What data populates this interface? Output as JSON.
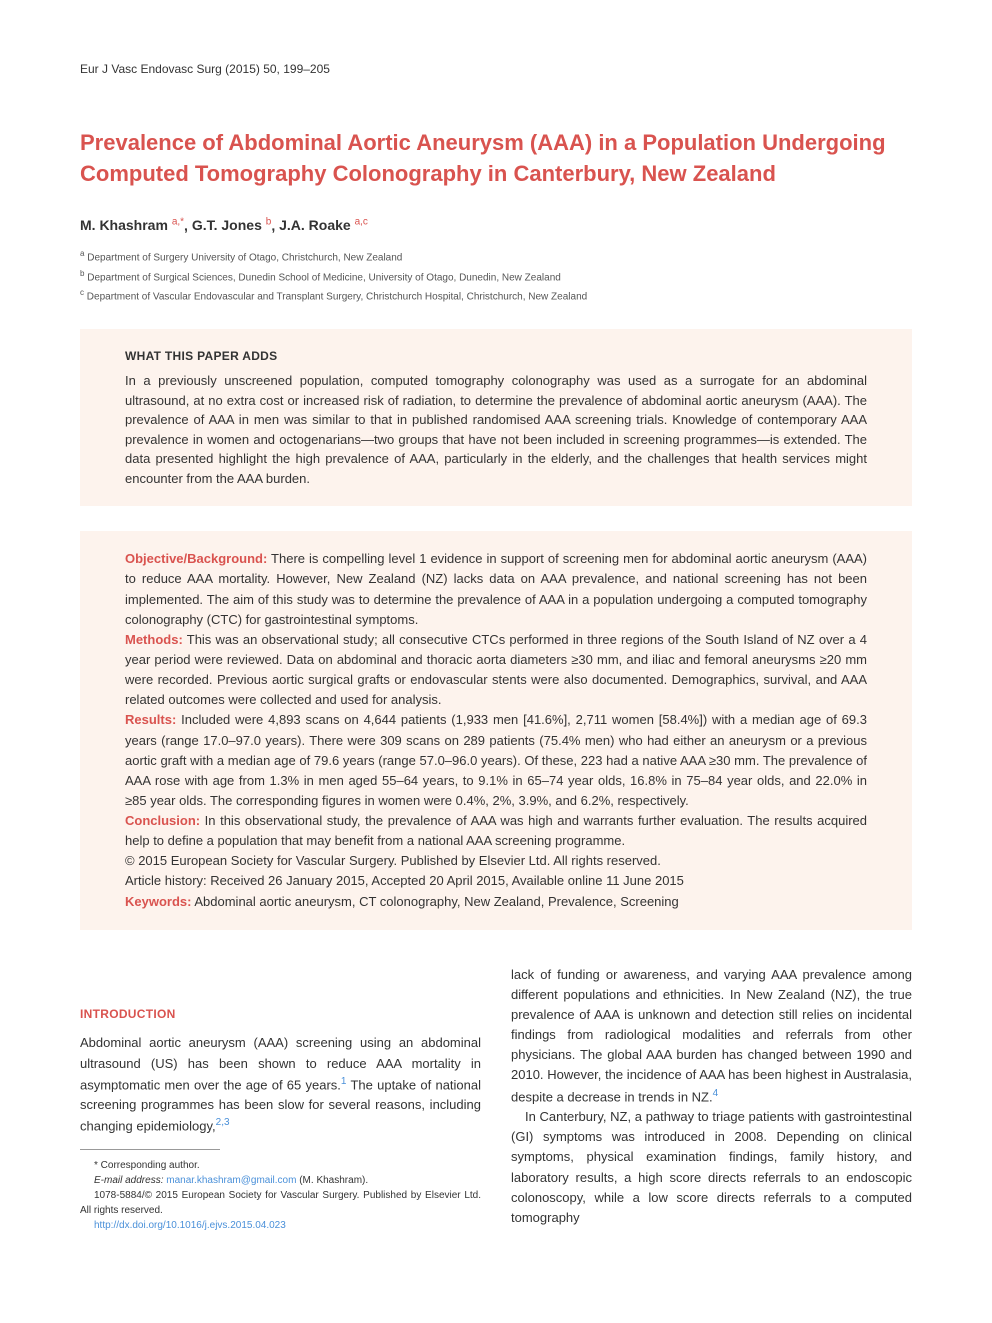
{
  "header": {
    "journal_ref": "Eur J Vasc Endovasc Surg (2015) 50, 199–205"
  },
  "title": "Prevalence of Abdominal Aortic Aneurysm (AAA) in a Population Undergoing Computed Tomography Colonography in Canterbury, New Zealand",
  "authors": [
    {
      "name": "M. Khashram",
      "sup": "a,*"
    },
    {
      "name": "G.T. Jones",
      "sup": "b"
    },
    {
      "name": "J.A. Roake",
      "sup": "a,c"
    }
  ],
  "affiliations": [
    {
      "sup": "a",
      "text": "Department of Surgery University of Otago, Christchurch, New Zealand"
    },
    {
      "sup": "b",
      "text": "Department of Surgical Sciences, Dunedin School of Medicine, University of Otago, Dunedin, New Zealand"
    },
    {
      "sup": "c",
      "text": "Department of Vascular Endovascular and Transplant Surgery, Christchurch Hospital, Christchurch, New Zealand"
    }
  ],
  "paper_adds": {
    "heading": "WHAT THIS PAPER ADDS",
    "text": "In a previously unscreened population, computed tomography colonography was used as a surrogate for an abdominal ultrasound, at no extra cost or increased risk of radiation, to determine the prevalence of abdominal aortic aneurysm (AAA). The prevalence of AAA in men was similar to that in published randomised AAA screening trials. Knowledge of contemporary AAA prevalence in women and octogenarians—two groups that have not been included in screening programmes—is extended. The data presented highlight the high prevalence of AAA, particularly in the elderly, and the challenges that health services might encounter from the AAA burden."
  },
  "abstract": {
    "objective_label": "Objective/Background:",
    "objective_text": " There is compelling level 1 evidence in support of screening men for abdominal aortic aneurysm (AAA) to reduce AAA mortality. However, New Zealand (NZ) lacks data on AAA prevalence, and national screening has not been implemented. The aim of this study was to determine the prevalence of AAA in a population undergoing a computed tomography colonography (CTC) for gastrointestinal symptoms.",
    "methods_label": "Methods:",
    "methods_text": " This was an observational study; all consecutive CTCs performed in three regions of the South Island of NZ over a 4 year period were reviewed. Data on abdominal and thoracic aorta diameters ≥30 mm, and iliac and femoral aneurysms ≥20 mm were recorded. Previous aortic surgical grafts or endovascular stents were also documented. Demographics, survival, and AAA related outcomes were collected and used for analysis.",
    "results_label": "Results:",
    "results_text": " Included were 4,893 scans on 4,644 patients (1,933 men [41.6%], 2,711 women [58.4%]) with a median age of 69.3 years (range 17.0–97.0 years). There were 309 scans on 289 patients (75.4% men) who had either an aneurysm or a previous aortic graft with a median age of 79.6 years (range 57.0–96.0 years). Of these, 223 had a native AAA ≥30 mm. The prevalence of AAA rose with age from 1.3% in men aged 55–64 years, to 9.1% in 65–74 year olds, 16.8% in 75–84 year olds, and 22.0% in ≥85 year olds. The corresponding figures in women were 0.4%, 2%, 3.9%, and 6.2%, respectively.",
    "conclusion_label": "Conclusion:",
    "conclusion_text": " In this observational study, the prevalence of AAA was high and warrants further evaluation. The results acquired help to define a population that may benefit from a national AAA screening programme.",
    "copyright": "© 2015 European Society for Vascular Surgery. Published by Elsevier Ltd. All rights reserved.",
    "history": "Article history: Received 26 January 2015, Accepted 20 April 2015, Available online 11 June 2015",
    "keywords_label": "Keywords:",
    "keywords_text": " Abdominal aortic aneurysm, CT colonography, New Zealand, Prevalence, Screening"
  },
  "intro": {
    "heading": "INTRODUCTION",
    "col1_p1": "Abdominal aortic aneurysm (AAA) screening using an abdominal ultrasound (US) has been shown to reduce AAA mortality in asymptomatic men over the age of 65 years.",
    "col1_ref1": "1",
    "col1_p1b": " The uptake of national screening programmes has been slow for several reasons, including changing epidemiology,",
    "col1_ref2": "2,3",
    "col2_p1": "lack of funding or awareness, and varying AAA prevalence among different populations and ethnicities. In New Zealand (NZ), the true prevalence of AAA is unknown and detection still relies on incidental findings from radiological modalities and referrals from other physicians. The global AAA burden has changed between 1990 and 2010. However, the incidence of AAA has been highest in Australasia, despite a decrease in trends in NZ.",
    "col2_ref1": "4",
    "col2_p2": "In Canterbury, NZ, a pathway to triage patients with gastrointestinal (GI) symptoms was introduced in 2008. Depending on clinical symptoms, physical examination findings, family history, and laboratory results, a high score directs referrals to an endoscopic colonoscopy, while a low score directs referrals to a computed tomography"
  },
  "footnote": {
    "corresponding": "* Corresponding author.",
    "email_label": "E-mail address: ",
    "email": "manar.khashram@gmail.com",
    "email_suffix": " (M. Khashram).",
    "issn": "1078-5884/© 2015 European Society for Vascular Surgery. Published by Elsevier Ltd. All rights reserved.",
    "doi": "http://dx.doi.org/10.1016/j.ejvs.2015.04.023"
  },
  "colors": {
    "accent": "#d9534f",
    "link": "#4a90d9",
    "box_bg": "#fdf3ed",
    "text": "#333333"
  }
}
